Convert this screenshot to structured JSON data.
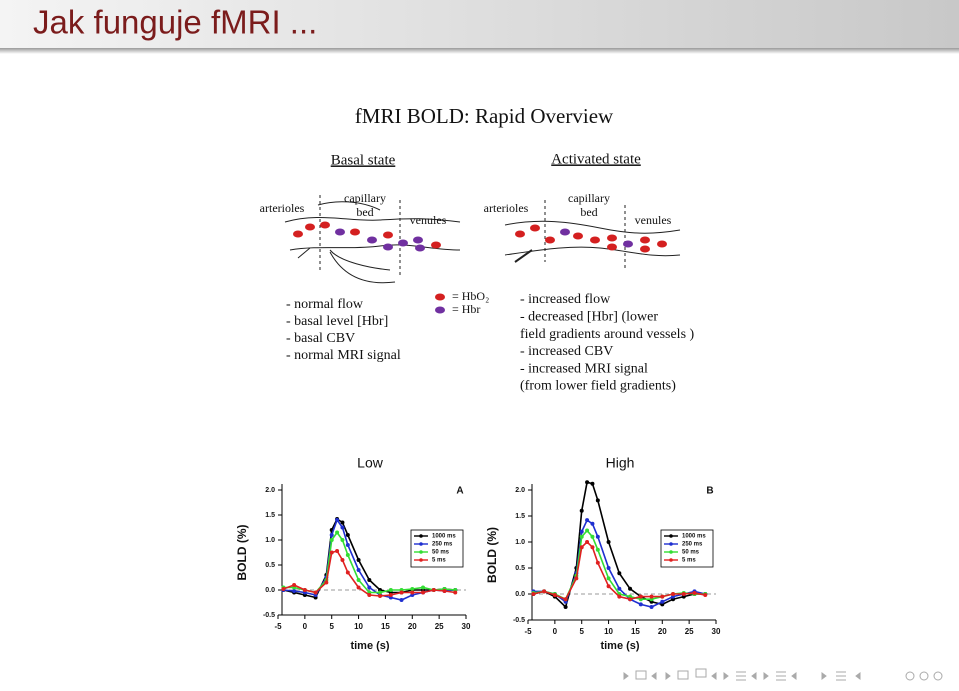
{
  "slide": {
    "title": "Jak funguje fMRI ..."
  },
  "diagram": {
    "title": "fMRI BOLD: Rapid Overview",
    "basal": {
      "heading": "Basal state",
      "arterioles": "arterioles",
      "capillary": "capillary",
      "bed": "bed",
      "venules": "venules",
      "notes": [
        "- normal flow",
        "- basal level [Hbr]",
        "- basal CBV",
        "- normal MRI signal"
      ]
    },
    "activated": {
      "heading": "Activated state",
      "arterioles": "arterioles",
      "capillary": "capillary",
      "bed": "bed",
      "venules": "venules",
      "notes": [
        "- increased flow",
        "- decreased [Hbr] (lower",
        "field gradients around vessels )",
        "- increased CBV",
        "- increased MRI signal",
        "(from lower field gradients)"
      ]
    },
    "legend": [
      "= HbO₂",
      "= Hbr"
    ]
  },
  "charts": [
    {
      "type": "line",
      "panel_title": "Low",
      "label": "A",
      "ylabel": "BOLD (%)",
      "xlabel": "time (s)",
      "x": [
        -4,
        -2,
        0,
        2,
        4,
        5,
        6,
        7,
        8,
        10,
        12,
        14,
        16,
        18,
        20,
        22,
        24,
        26,
        28
      ],
      "xlim": [
        -5,
        30
      ],
      "ylim": [
        -0.5,
        2.0
      ],
      "xticks": [
        -5,
        0,
        5,
        10,
        15,
        20,
        25,
        30
      ],
      "yticks": [
        -0.5,
        {
          "value": 0,
          "label": "0.0"
        },
        0.5,
        {
          "value": 1,
          "label": "1.0"
        },
        1.5,
        {
          "value": 2,
          "label": "2.0"
        }
      ],
      "hline": 0,
      "series": [
        {
          "name": "1000 ms",
          "color": "#000000",
          "values": [
            0.0,
            -0.05,
            -0.1,
            -0.15,
            0.3,
            1.2,
            1.42,
            1.35,
            1.1,
            0.6,
            0.2,
            0.0,
            -0.05,
            -0.05,
            0.0,
            0.0,
            0.0,
            0.02,
            0.0
          ]
        },
        {
          "name": "250 ms",
          "color": "#1f2fd0",
          "values": [
            0.0,
            -0.02,
            -0.05,
            -0.1,
            0.25,
            1.1,
            1.4,
            1.25,
            0.9,
            0.4,
            0.05,
            -0.1,
            -0.15,
            -0.2,
            -0.1,
            -0.05,
            0.0,
            -0.02,
            0.0
          ]
        },
        {
          "name": "50 ms",
          "color": "#33dd33",
          "values": [
            0.05,
            0.05,
            0.0,
            -0.05,
            0.2,
            1.0,
            1.15,
            1.0,
            0.7,
            0.2,
            -0.05,
            -0.05,
            0.0,
            0.0,
            0.02,
            0.05,
            0.0,
            0.02,
            0.0
          ]
        },
        {
          "name": "5 ms",
          "color": "#e02020",
          "values": [
            0.02,
            0.1,
            0.0,
            -0.05,
            0.15,
            0.75,
            0.78,
            0.6,
            0.35,
            0.05,
            -0.1,
            -0.12,
            -0.1,
            -0.05,
            -0.05,
            -0.05,
            0.0,
            -0.02,
            -0.05
          ]
        }
      ]
    },
    {
      "type": "line",
      "panel_title": "High",
      "label": "B",
      "ylabel": "BOLD (%)",
      "xlabel": "time (s)",
      "x": [
        -4,
        -2,
        0,
        2,
        4,
        5,
        6,
        7,
        8,
        10,
        12,
        14,
        16,
        18,
        20,
        22,
        24,
        26,
        28
      ],
      "xlim": [
        -5,
        30
      ],
      "ylim": [
        -0.5,
        2.0
      ],
      "xticks": [
        -5,
        0,
        5,
        10,
        15,
        20,
        25,
        30
      ],
      "yticks": [
        -0.5,
        {
          "value": 0,
          "label": "0.0"
        },
        0.5,
        {
          "value": 1,
          "label": "1.0"
        },
        1.5,
        {
          "value": 2,
          "label": "2.0"
        }
      ],
      "hline": 0,
      "series": [
        {
          "name": "1000 ms",
          "color": "#000000",
          "values": [
            0.0,
            0.05,
            -0.05,
            -0.25,
            0.5,
            1.6,
            2.15,
            2.12,
            1.8,
            1.0,
            0.4,
            0.1,
            -0.05,
            -0.15,
            -0.2,
            -0.1,
            -0.05,
            0.0,
            0.0
          ]
        },
        {
          "name": "250 ms",
          "color": "#1f2fd0",
          "values": [
            0.05,
            0.05,
            0.0,
            -0.15,
            0.4,
            1.2,
            1.42,
            1.35,
            1.1,
            0.5,
            0.1,
            -0.1,
            -0.2,
            -0.25,
            -0.15,
            -0.05,
            0.0,
            0.05,
            0.0
          ]
        },
        {
          "name": "50 ms",
          "color": "#33dd33",
          "values": [
            0.02,
            0.05,
            0.0,
            -0.1,
            0.35,
            1.1,
            1.22,
            1.1,
            0.85,
            0.3,
            0.0,
            -0.05,
            -0.1,
            -0.1,
            -0.05,
            0.0,
            0.02,
            0.0,
            0.0
          ]
        },
        {
          "name": "5 ms",
          "color": "#e02020",
          "values": [
            0.0,
            0.05,
            -0.02,
            -0.1,
            0.3,
            0.9,
            1.0,
            0.9,
            0.6,
            0.15,
            -0.05,
            -0.1,
            -0.05,
            -0.05,
            -0.05,
            0.0,
            0.0,
            0.02,
            -0.02
          ]
        }
      ]
    }
  ]
}
